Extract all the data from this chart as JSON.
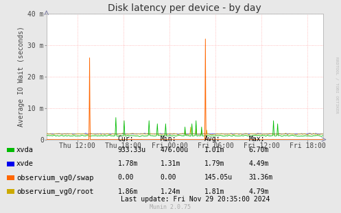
{
  "title": "Disk latency per device - by day",
  "ylabel": "Average IO Wait (seconds)",
  "background_color": "#e8e8e8",
  "plot_bg_color": "#ffffff",
  "grid_color": "#ffaaaa",
  "grid_style": ":",
  "ylim": [
    0,
    0.04
  ],
  "yticks": [
    0,
    0.01,
    0.02,
    0.03,
    0.04
  ],
  "ytick_labels": [
    "0",
    "10 m",
    "20 m",
    "30 m",
    "40 m"
  ],
  "xtick_labels": [
    "Thu 12:00",
    "Thu 18:00",
    "Fri 00:00",
    "Fri 06:00",
    "Fri 12:00",
    "Fri 18:00"
  ],
  "xtick_positions": [
    0.1111,
    0.2778,
    0.4444,
    0.6111,
    0.7778,
    0.9444
  ],
  "series": {
    "xvda": {
      "color": "#00bb00",
      "base": 0.0012
    },
    "xvde": {
      "color": "#0000ee",
      "base": 0.0018
    },
    "swap": {
      "color": "#ff6600"
    },
    "root": {
      "color": "#ccaa00",
      "base": 0.00175
    }
  },
  "legend_items": [
    {
      "label": "xvda",
      "color": "#00bb00"
    },
    {
      "label": "xvde",
      "color": "#0000ee"
    },
    {
      "label": "observium_vg0/swap",
      "color": "#ff6600"
    },
    {
      "label": "observium_vg0/root",
      "color": "#ccaa00"
    }
  ],
  "stats_header": [
    "Cur:",
    "Min:",
    "Avg:",
    "Max:"
  ],
  "stats": [
    [
      "933.33u",
      "476.00u",
      "1.01m",
      "6.70m"
    ],
    [
      "1.78m",
      "1.31m",
      "1.79m",
      "4.49m"
    ],
    [
      "0.00",
      "0.00",
      "145.05u",
      "31.36m"
    ],
    [
      "1.86m",
      "1.24m",
      "1.81m",
      "4.79m"
    ]
  ],
  "last_update": "Last update: Fri Nov 29 20:35:00 2024",
  "munin_version": "Munin 2.0.75",
  "rrdtool_label": "RRDTOOL / TOBI OETIKER",
  "title_fontsize": 10,
  "axis_fontsize": 7,
  "legend_fontsize": 7.5,
  "stats_fontsize": 7
}
